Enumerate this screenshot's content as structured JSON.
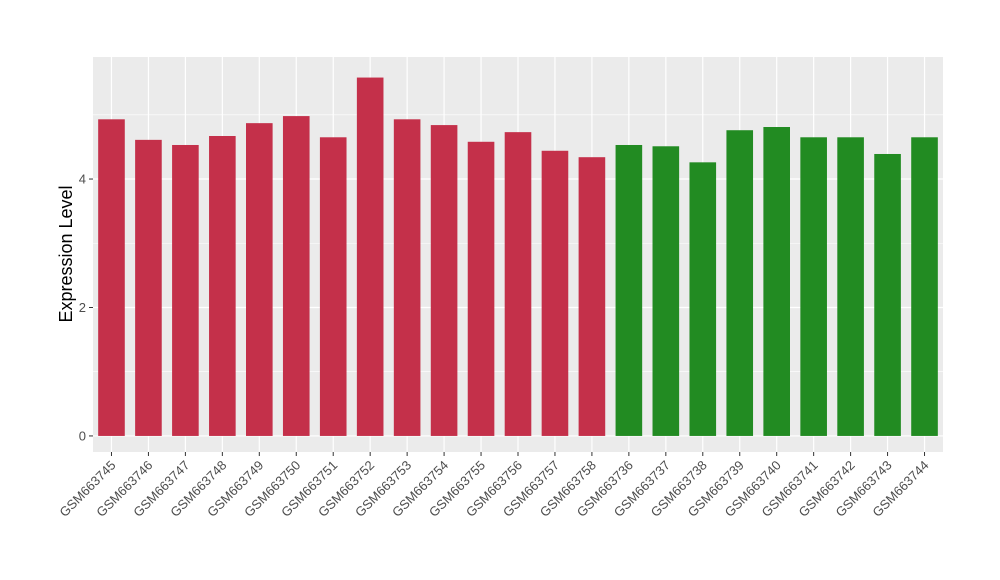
{
  "chart_data": {
    "type": "bar",
    "title": "",
    "xlabel": "",
    "ylabel": "Expression Level",
    "ylim": [
      -0.25,
      5.9
    ],
    "yticks": [
      0,
      2,
      4
    ],
    "grid": true,
    "legend": "none",
    "colors": {
      "group1": "#c4304a",
      "group2": "#228b22",
      "panel": "#ebebeb",
      "grid": "#ffffff"
    },
    "categories": [
      "GSM663745",
      "GSM663746",
      "GSM663747",
      "GSM663748",
      "GSM663749",
      "GSM663750",
      "GSM663751",
      "GSM663752",
      "GSM663753",
      "GSM663754",
      "GSM663755",
      "GSM663756",
      "GSM663757",
      "GSM663758",
      "GSM663736",
      "GSM663737",
      "GSM663738",
      "GSM663739",
      "GSM663740",
      "GSM663741",
      "GSM663742",
      "GSM663743",
      "GSM663744"
    ],
    "values": [
      4.93,
      4.61,
      4.53,
      4.67,
      4.87,
      4.98,
      4.65,
      5.58,
      4.93,
      4.84,
      4.58,
      4.73,
      4.44,
      4.34,
      4.53,
      4.51,
      4.26,
      4.76,
      4.81,
      4.65,
      4.65,
      4.39,
      4.65
    ],
    "groups": [
      1,
      1,
      1,
      1,
      1,
      1,
      1,
      1,
      1,
      1,
      1,
      1,
      1,
      1,
      2,
      2,
      2,
      2,
      2,
      2,
      2,
      2,
      2
    ]
  }
}
